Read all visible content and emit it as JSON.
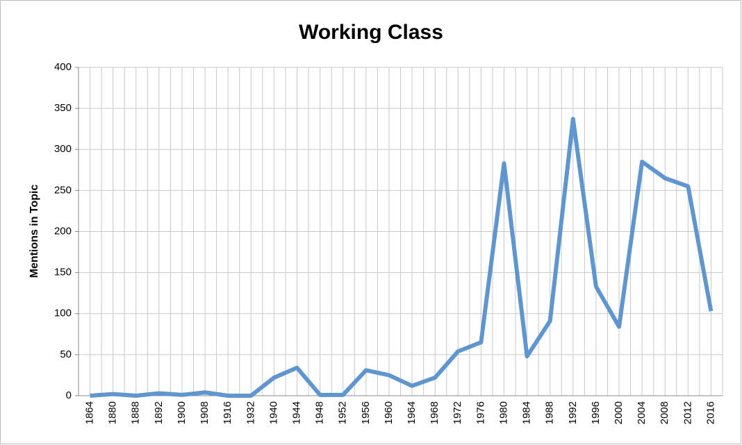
{
  "chart_data": {
    "type": "line",
    "title": "Working Class",
    "ylabel": "Mentions in Topic",
    "categories": [
      "1864",
      "1880",
      "1888",
      "1892",
      "1900",
      "1908",
      "1916",
      "1932",
      "1940",
      "1944",
      "1948",
      "1952",
      "1956",
      "1960",
      "1964",
      "1968",
      "1972",
      "1976",
      "1980",
      "1984",
      "1988",
      "1992",
      "1996",
      "2000",
      "2004",
      "2008",
      "2012",
      "2016"
    ],
    "series": [
      {
        "name": "Working Class",
        "color": "#6096cf",
        "values": [
          0,
          2,
          0,
          3,
          1,
          4,
          0,
          0,
          22,
          34,
          1,
          1,
          31,
          25,
          12,
          22,
          54,
          65,
          283,
          48,
          91,
          337,
          133,
          84,
          285,
          265,
          255,
          103
        ]
      }
    ],
    "ylim": [
      0,
      400
    ],
    "yticks": [
      0,
      50,
      100,
      150,
      200,
      250,
      300,
      350,
      400
    ],
    "grid": true
  }
}
